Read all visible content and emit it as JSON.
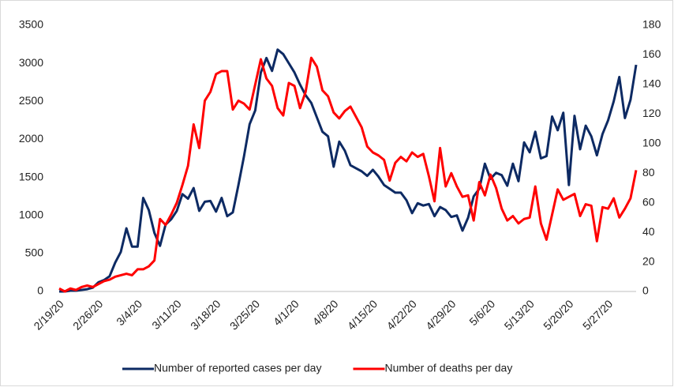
{
  "chart_data": {
    "type": "line",
    "categories": [
      "2/19/20",
      null,
      null,
      null,
      null,
      null,
      null,
      "2/26/20",
      null,
      null,
      null,
      null,
      null,
      null,
      "3/4/20",
      null,
      null,
      null,
      null,
      null,
      null,
      "3/11/20",
      null,
      null,
      null,
      null,
      null,
      null,
      "3/18/20",
      null,
      null,
      null,
      null,
      null,
      null,
      "3/25/20",
      null,
      null,
      null,
      null,
      null,
      null,
      "4/1/20",
      null,
      null,
      null,
      null,
      null,
      null,
      "4/8/20",
      null,
      null,
      null,
      null,
      null,
      null,
      "4/15/20",
      null,
      null,
      null,
      null,
      null,
      null,
      "4/22/20",
      null,
      null,
      null,
      null,
      null,
      null,
      "4/29/20",
      null,
      null,
      null,
      null,
      null,
      null,
      "5/6/20",
      null,
      null,
      null,
      null,
      null,
      null,
      "5/13/20",
      null,
      null,
      null,
      null,
      null,
      null,
      "5/20/20",
      null,
      null,
      null,
      null,
      null,
      null,
      "5/27/20",
      null,
      null,
      null,
      null,
      null
    ],
    "series": [
      {
        "name": "Number of reported cases per day",
        "color": "#0d2a63",
        "axis": "y",
        "values": [
          0,
          0,
          10,
          10,
          20,
          30,
          50,
          120,
          150,
          200,
          380,
          520,
          830,
          590,
          590,
          1230,
          1070,
          770,
          600,
          880,
          950,
          1060,
          1280,
          1220,
          1360,
          1060,
          1180,
          1190,
          1050,
          1230,
          990,
          1040,
          1400,
          1780,
          2200,
          2380,
          2880,
          3070,
          2900,
          3180,
          3120,
          3000,
          2880,
          2720,
          2580,
          2480,
          2290,
          2100,
          2040,
          1640,
          1970,
          1850,
          1660,
          1620,
          1580,
          1520,
          1600,
          1510,
          1400,
          1350,
          1300,
          1300,
          1200,
          1030,
          1160,
          1130,
          1150,
          990,
          1110,
          1070,
          980,
          1000,
          800,
          970,
          1250,
          1350,
          1680,
          1480,
          1560,
          1530,
          1390,
          1680,
          1450,
          1960,
          1830,
          2100,
          1750,
          1780,
          2300,
          2120,
          2350,
          1400,
          2310,
          1870,
          2180,
          2040,
          1790,
          2070,
          2250,
          2500,
          2820,
          2280,
          2520,
          2980
        ]
      },
      {
        "name": "Number of deaths per day",
        "color": "#ff0000",
        "axis": "y2",
        "values": [
          2,
          0,
          2,
          1,
          3,
          4,
          3,
          5,
          7,
          8,
          10,
          11,
          12,
          11,
          15,
          15,
          17,
          21,
          49,
          45,
          52,
          60,
          72,
          85,
          113,
          97,
          129,
          135,
          147,
          149,
          149,
          123,
          129,
          127,
          123,
          140,
          157,
          144,
          139,
          124,
          119,
          141,
          139,
          124,
          135,
          158,
          152,
          136,
          132,
          121,
          117,
          122,
          125,
          118,
          111,
          98,
          94,
          92,
          89,
          75,
          87,
          91,
          88,
          94,
          91,
          93,
          78,
          61,
          97,
          71,
          80,
          71,
          64,
          65,
          48,
          74,
          65,
          79,
          70,
          56,
          48,
          51,
          46,
          49,
          50,
          71,
          46,
          35,
          52,
          69,
          62,
          64,
          66,
          51,
          59,
          58,
          34,
          57,
          56,
          63,
          50,
          56,
          63,
          82
        ]
      }
    ],
    "ylim": [
      0,
      3500
    ],
    "yticks": [
      0,
      500,
      1000,
      1500,
      2000,
      2500,
      3000,
      3500
    ],
    "y2lim": [
      0,
      180
    ],
    "y2ticks": [
      0,
      20,
      40,
      60,
      80,
      100,
      120,
      140,
      160,
      180
    ],
    "grid": false,
    "legend": "bottom"
  }
}
